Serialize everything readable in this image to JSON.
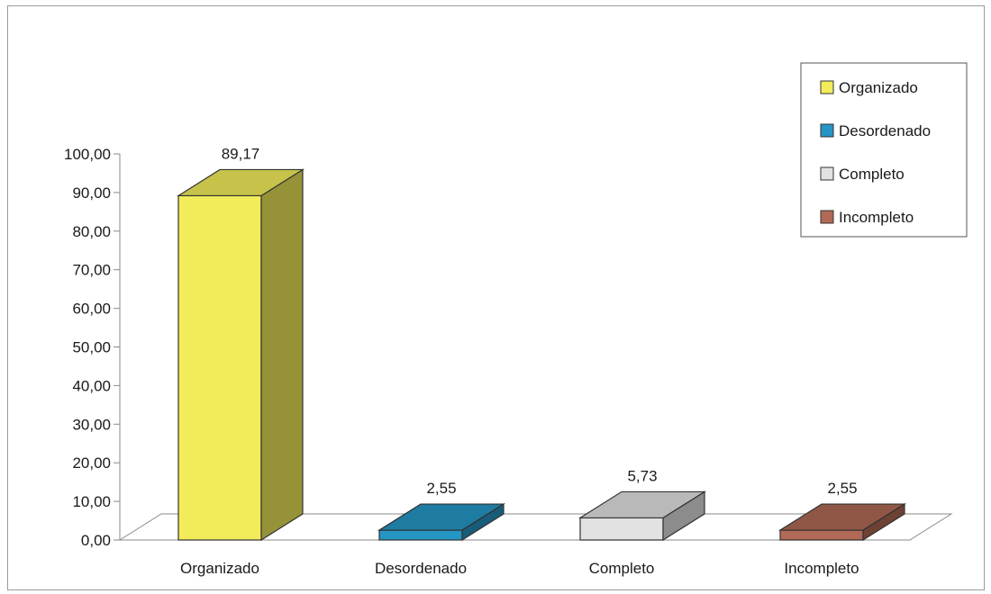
{
  "chart_data": {
    "type": "bar",
    "title": "",
    "xlabel": "",
    "ylabel": "",
    "categories": [
      "Organizado",
      "Desordenado",
      "Completo",
      "Incompleto"
    ],
    "values": [
      89.17,
      2.55,
      5.73,
      2.55
    ],
    "value_labels": [
      "89,17",
      "2,55",
      "5,73",
      "2,55"
    ],
    "ylim": [
      0,
      100
    ],
    "yticks": [
      "0,00",
      "10,00",
      "20,00",
      "30,00",
      "40,00",
      "50,00",
      "60,00",
      "70,00",
      "80,00",
      "90,00",
      "100,00"
    ],
    "colors": [
      "#f2ec5a",
      "#2596c4",
      "#e2e2e2",
      "#b06a55"
    ],
    "legend": {
      "position": "top-right",
      "entries": [
        "Organizado",
        "Desordenado",
        "Completo",
        "Incompleto"
      ]
    },
    "grid": false,
    "style": "3d-column"
  }
}
